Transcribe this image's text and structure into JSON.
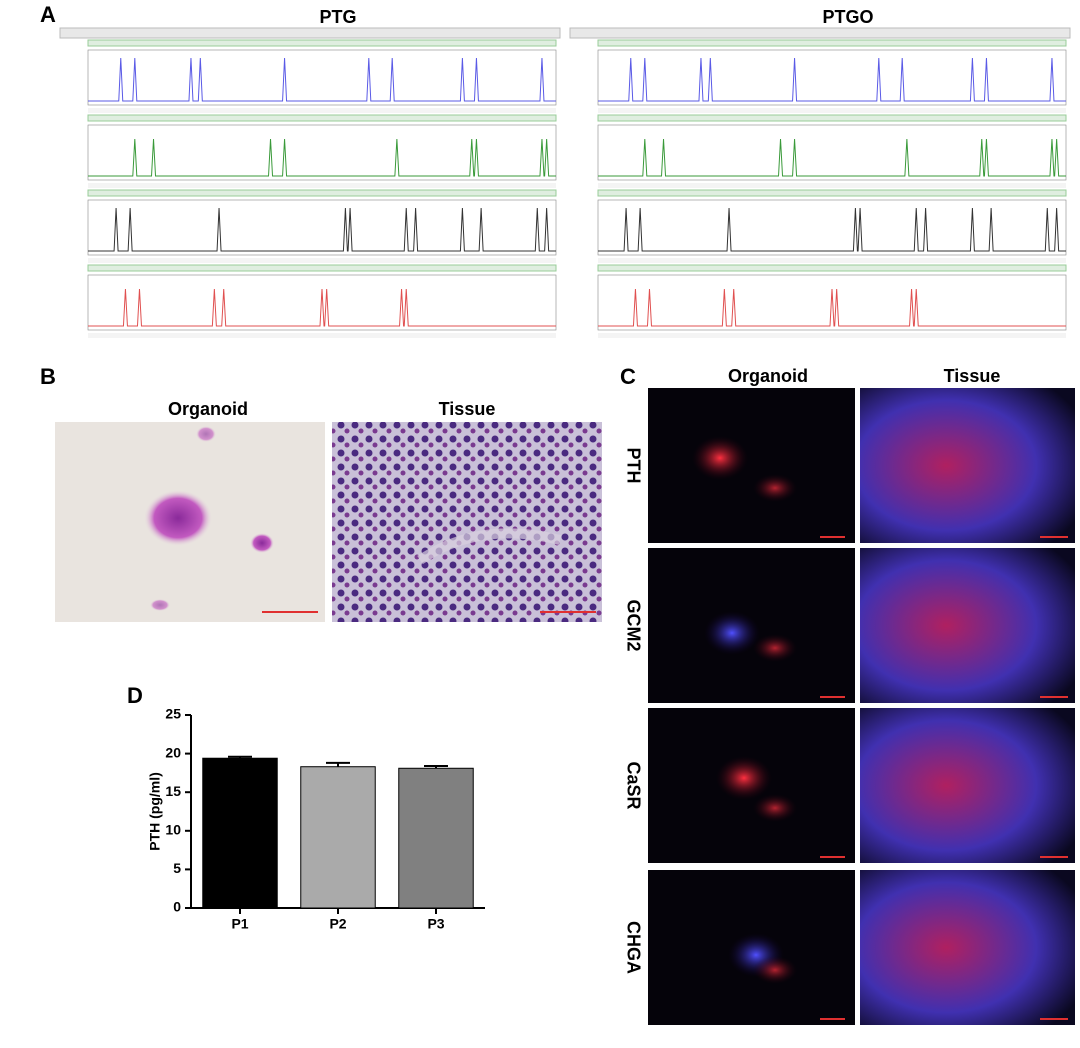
{
  "figure": {
    "panel_a": {
      "label": "A",
      "titles": [
        "PTG",
        "PTGO"
      ]
    },
    "panel_b": {
      "label": "B",
      "columns": [
        "Organoid",
        "Tissue"
      ]
    },
    "panel_c": {
      "label": "C",
      "columns": [
        "Organoid",
        "Tissue"
      ],
      "rows": [
        "PTH",
        "GCM2",
        "CaSR",
        "CHGA"
      ]
    },
    "panel_d": {
      "label": "D"
    }
  },
  "chart_data": {
    "type": "bar",
    "y_label": "PTH (pg/ml)",
    "categories": [
      "P1",
      "P2",
      "P3"
    ],
    "values": [
      19.4,
      18.3,
      18.1
    ],
    "errors": [
      0.2,
      0.5,
      0.3
    ],
    "colors": [
      "#000000",
      "#aaaaaa",
      "#808080"
    ],
    "ylim": [
      0,
      25
    ],
    "yticks": [
      0,
      5,
      10,
      15,
      20,
      25
    ]
  }
}
